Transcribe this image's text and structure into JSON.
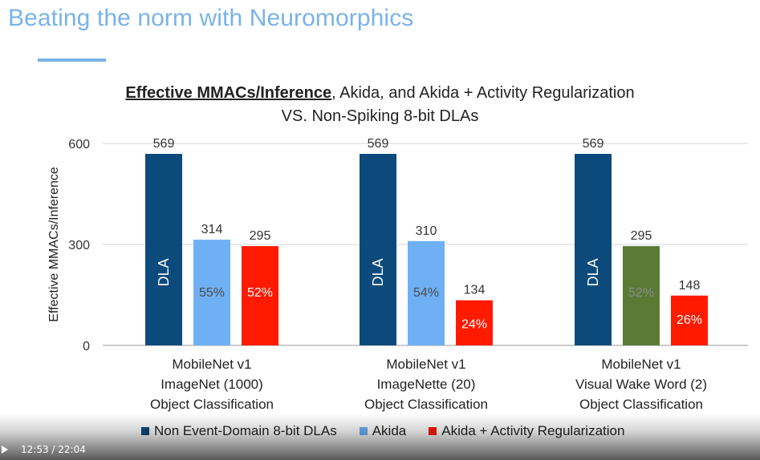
{
  "slide": {
    "title": "Beating the norm with Neuromorphics"
  },
  "chart_data": {
    "type": "bar",
    "title_emphasis": "Effective MMACs/Inference",
    "title_rest": ", Akida, and Akida + Activity Regularization",
    "subtitle": "VS. Non-Spiking 8-bit DLAs",
    "xlabel": "",
    "ylabel": "Effective MMACs/Inference",
    "ylim": [
      0,
      600
    ],
    "yticks": [
      0,
      300,
      600
    ],
    "grid": true,
    "legend_position": "bottom",
    "categories": [
      [
        "MobileNet v1",
        "ImageNet (1000)",
        "Object Classification"
      ],
      [
        "MobileNet v1",
        "ImageNette (20)",
        "Object Classification"
      ],
      [
        "MobileNet v1",
        "Visual Wake Word (2)",
        "Object Classification"
      ]
    ],
    "series": [
      {
        "name": "Non Event-Domain 8-bit DLAs",
        "color": "#0c4a7c",
        "values": [
          569,
          569,
          569
        ],
        "inner_labels": [
          "DLA",
          "DLA",
          "DLA"
        ]
      },
      {
        "name": "Akida",
        "color": "#6fb0f5",
        "values": [
          314,
          310,
          null
        ],
        "inner_labels": [
          "55%",
          "54%",
          null
        ]
      },
      {
        "name": "Akida + Activity Regularization",
        "color": "#ff1a00",
        "values": [
          295,
          134,
          148
        ],
        "inner_labels": [
          "52%",
          "24%",
          "26%"
        ]
      }
    ],
    "extra_bars": [
      {
        "category_index": 2,
        "slot": 1,
        "value": 295,
        "inner_label": "52%",
        "color": "#5a7a35"
      }
    ]
  },
  "video": {
    "time": "12:53 / 22:04",
    "play_icon": "play-icon"
  }
}
